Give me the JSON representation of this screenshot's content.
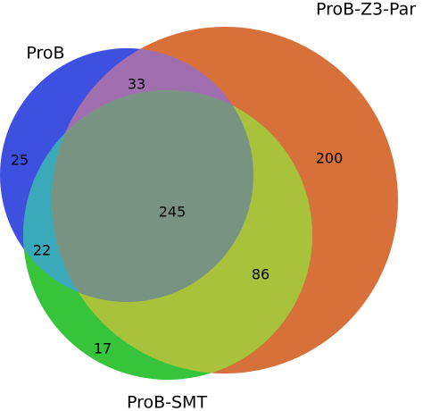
{
  "chart_data": {
    "type": "venn",
    "sets": [
      {
        "name": "ProB",
        "color": "#3d50e0"
      },
      {
        "name": "ProB-Z3-Par",
        "color": "#d8703a"
      },
      {
        "name": "ProB-SMT",
        "color": "#36c43a"
      }
    ],
    "values": [
      25,
      33,
      200,
      245,
      22,
      86,
      17
    ]
  }
}
